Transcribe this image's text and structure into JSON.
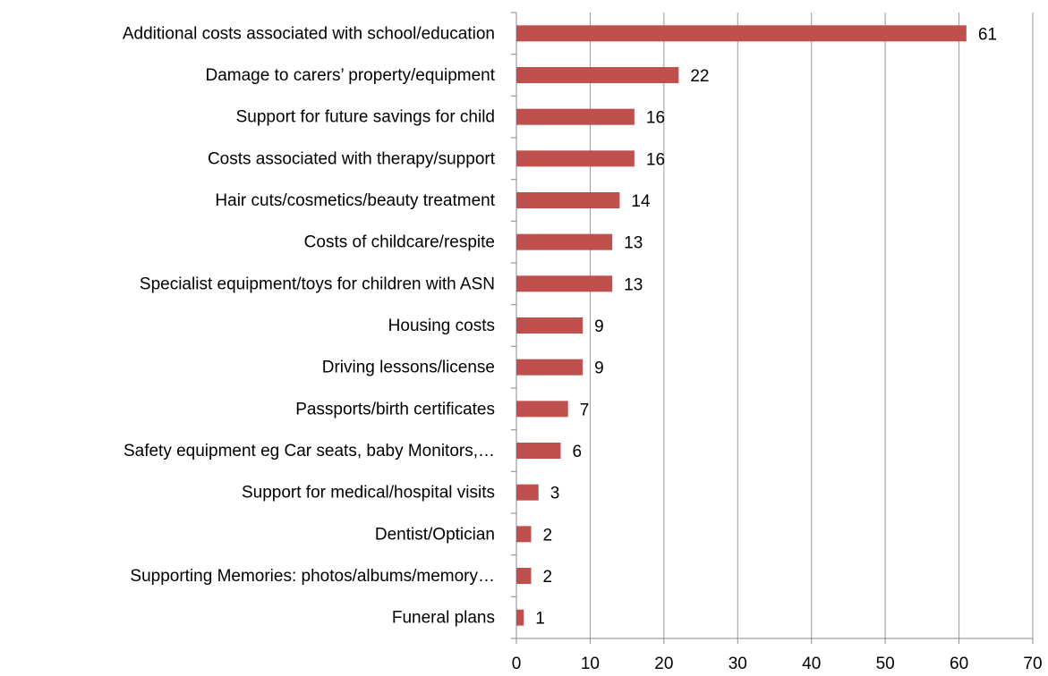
{
  "chart_data": {
    "type": "bar",
    "orientation": "horizontal",
    "categories": [
      "Additional costs associated with school/education",
      "Damage to carers’ property/equipment",
      "Support for future savings for child",
      "Costs associated with therapy/support",
      "Hair cuts/cosmetics/beauty treatment",
      "Costs of childcare/respite",
      "Specialist equipment/toys for children with ASN",
      "Housing costs",
      "Driving lessons/license",
      "Passports/birth certificates",
      "Safety equipment eg Car seats, baby Monitors,…",
      "Support for medical/hospital visits",
      "Dentist/Optician",
      "Supporting Memories: photos/albums/memory…",
      "Funeral plans"
    ],
    "values": [
      61,
      22,
      16,
      16,
      14,
      13,
      13,
      9,
      9,
      7,
      6,
      3,
      2,
      2,
      1
    ],
    "color": "#c0504d",
    "xlim": [
      0,
      70
    ],
    "xticks": [
      0,
      10,
      20,
      30,
      40,
      50,
      60,
      70
    ],
    "grid": true
  }
}
